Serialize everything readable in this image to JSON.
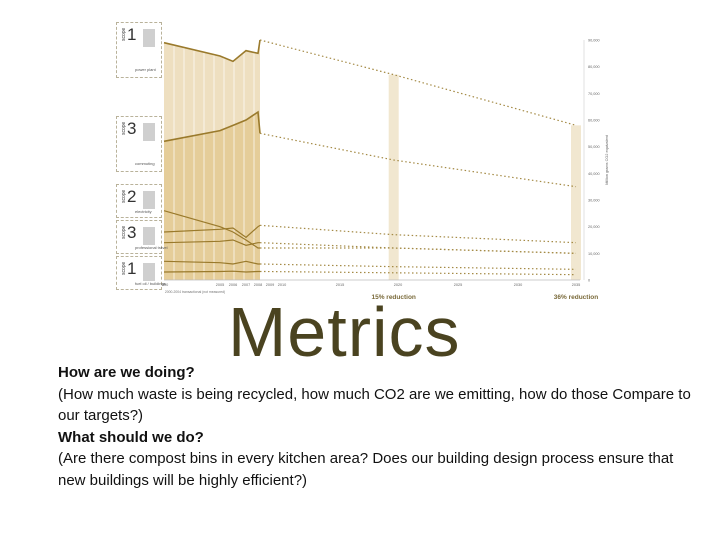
{
  "slide": {
    "title": "Metrics",
    "q1_heading": "How are we doing?",
    "q1_detail": "(How much waste is being recycled, how much CO2 are we emitting, how do those Compare to our targets?)",
    "q2_heading": "What should we do?",
    "q2_detail": " (Are there compost bins in every kitchen area? Does our building design process ensure that new buildings will be highly efficient?)"
  },
  "scopes": [
    {
      "word": "scope",
      "num": "1",
      "caption": "power plant"
    },
    {
      "word": "scope",
      "num": "3",
      "caption": "commuting"
    },
    {
      "word": "scope",
      "num": "2",
      "caption": "electricity"
    },
    {
      "word": "scope",
      "num": "3",
      "caption": "professional travel"
    },
    {
      "word": "scope",
      "num": "1",
      "caption": "fuel oil / buildings"
    }
  ],
  "chart_data": {
    "type": "area",
    "x": [
      2000,
      2005,
      2006,
      2007,
      2008,
      2009,
      2020,
      2035
    ],
    "baseline_note": "2000-2004 transactional (not measured)",
    "x_ticks": [
      "2000",
      "2005",
      "2006",
      "2007",
      "2008",
      "2009",
      "2010",
      "2015",
      "2020",
      "2025",
      "2030",
      "2035"
    ],
    "y_ticks": [
      "90,000",
      "80,000",
      "70,000",
      "60,000",
      "50,000",
      "40,000",
      "30,000",
      "20,000",
      "10,000",
      "0"
    ],
    "ylabel": "Million grams CO2 equivalent",
    "ylim": [
      0,
      90000
    ],
    "targets": [
      {
        "year": 2020,
        "label": "15% reduction"
      },
      {
        "year": 2035,
        "label": "36% reduction"
      }
    ],
    "series": [
      {
        "values": [
          89000,
          84000,
          82000,
          86000,
          85000,
          90000,
          77000,
          58000
        ]
      },
      {
        "values": [
          52000,
          56000,
          58000,
          60000,
          63000,
          55000,
          45000,
          35000
        ]
      },
      {
        "values": [
          26000,
          20000,
          18000,
          15000,
          12000,
          12000,
          12000,
          10000
        ]
      },
      {
        "values": [
          18000,
          19000,
          19500,
          16000,
          20000,
          20500,
          17000,
          14000
        ]
      },
      {
        "values": [
          14000,
          14500,
          15000,
          13000,
          14000,
          14000,
          12000,
          10000
        ]
      },
      {
        "values": [
          7000,
          6500,
          6000,
          7000,
          6000,
          6000,
          5000,
          4000
        ]
      },
      {
        "values": [
          3000,
          3200,
          3300,
          3000,
          3200,
          3200,
          2700,
          2000
        ]
      }
    ],
    "grid": false,
    "legend": "none"
  }
}
